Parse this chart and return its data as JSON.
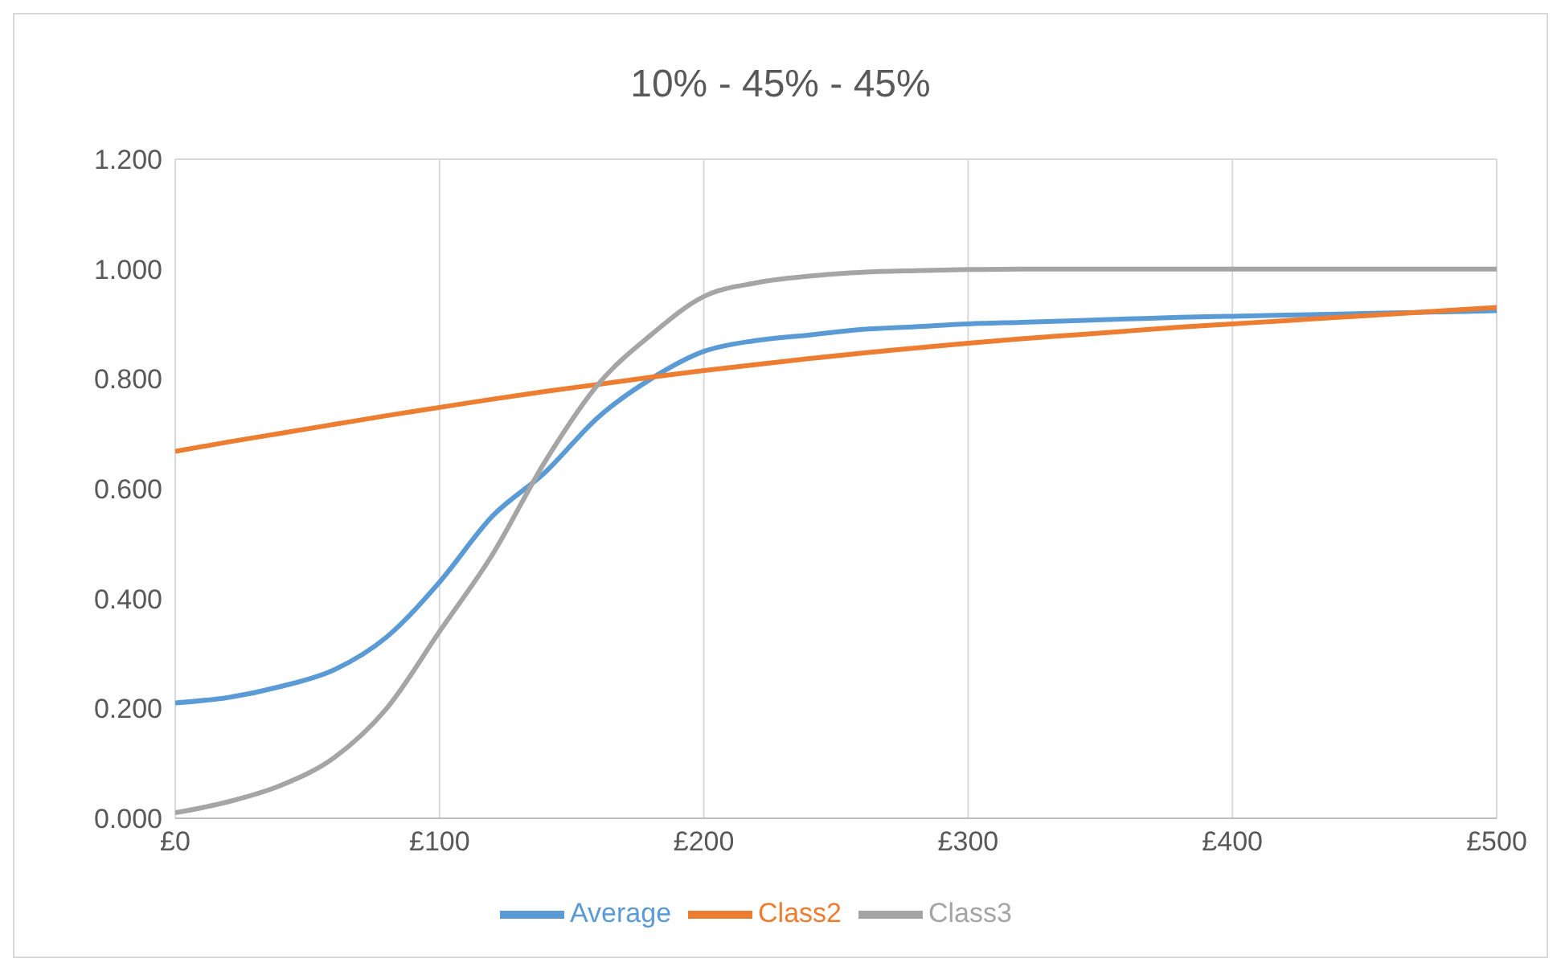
{
  "chart_data": {
    "type": "line",
    "title": "10% - 45% - 45%",
    "x": [
      0,
      20,
      40,
      60,
      80,
      100,
      120,
      140,
      160,
      180,
      200,
      220,
      240,
      260,
      280,
      300,
      320,
      340,
      360,
      380,
      400,
      420,
      440,
      460,
      480,
      500
    ],
    "series": [
      {
        "name": "Average",
        "color": "#5b9bd5",
        "values": [
          0.21,
          0.22,
          0.24,
          0.27,
          0.33,
          0.43,
          0.55,
          0.63,
          0.73,
          0.8,
          0.85,
          0.87,
          0.88,
          0.89,
          0.895,
          0.9,
          0.903,
          0.906,
          0.909,
          0.912,
          0.914,
          0.916,
          0.918,
          0.92,
          0.922,
          0.924
        ]
      },
      {
        "name": "Class2",
        "color": "#ed7d31",
        "values": [
          0.668,
          0.685,
          0.701,
          0.717,
          0.733,
          0.748,
          0.763,
          0.777,
          0.79,
          0.803,
          0.815,
          0.826,
          0.837,
          0.847,
          0.856,
          0.865,
          0.873,
          0.88,
          0.887,
          0.894,
          0.9,
          0.906,
          0.912,
          0.918,
          0.924,
          0.93
        ]
      },
      {
        "name": "Class3",
        "color": "#a5a5a5",
        "values": [
          0.01,
          0.03,
          0.06,
          0.11,
          0.2,
          0.34,
          0.48,
          0.65,
          0.79,
          0.88,
          0.95,
          0.975,
          0.987,
          0.994,
          0.997,
          0.999,
          1,
          1,
          1,
          1,
          1,
          1,
          1,
          1,
          1,
          1
        ]
      }
    ],
    "xlim": [
      0,
      500
    ],
    "xticks": [
      {
        "value": 0,
        "label": "£0"
      },
      {
        "value": 100,
        "label": "£100"
      },
      {
        "value": 200,
        "label": "£200"
      },
      {
        "value": 300,
        "label": "£300"
      },
      {
        "value": 400,
        "label": "£400"
      },
      {
        "value": 500,
        "label": "£500"
      }
    ],
    "ylim": [
      0,
      1.2
    ],
    "yticks": [
      {
        "value": 0,
        "label": "0.000"
      },
      {
        "value": 0.2,
        "label": "0.200"
      },
      {
        "value": 0.4,
        "label": "0.400"
      },
      {
        "value": 0.6,
        "label": "0.600"
      },
      {
        "value": 0.8,
        "label": "0.800"
      },
      {
        "value": 1,
        "label": "1.000"
      },
      {
        "value": 1.2,
        "label": "1.200"
      }
    ],
    "grid": true,
    "legend": "bottom",
    "marker": "none",
    "line_style": "solid"
  }
}
